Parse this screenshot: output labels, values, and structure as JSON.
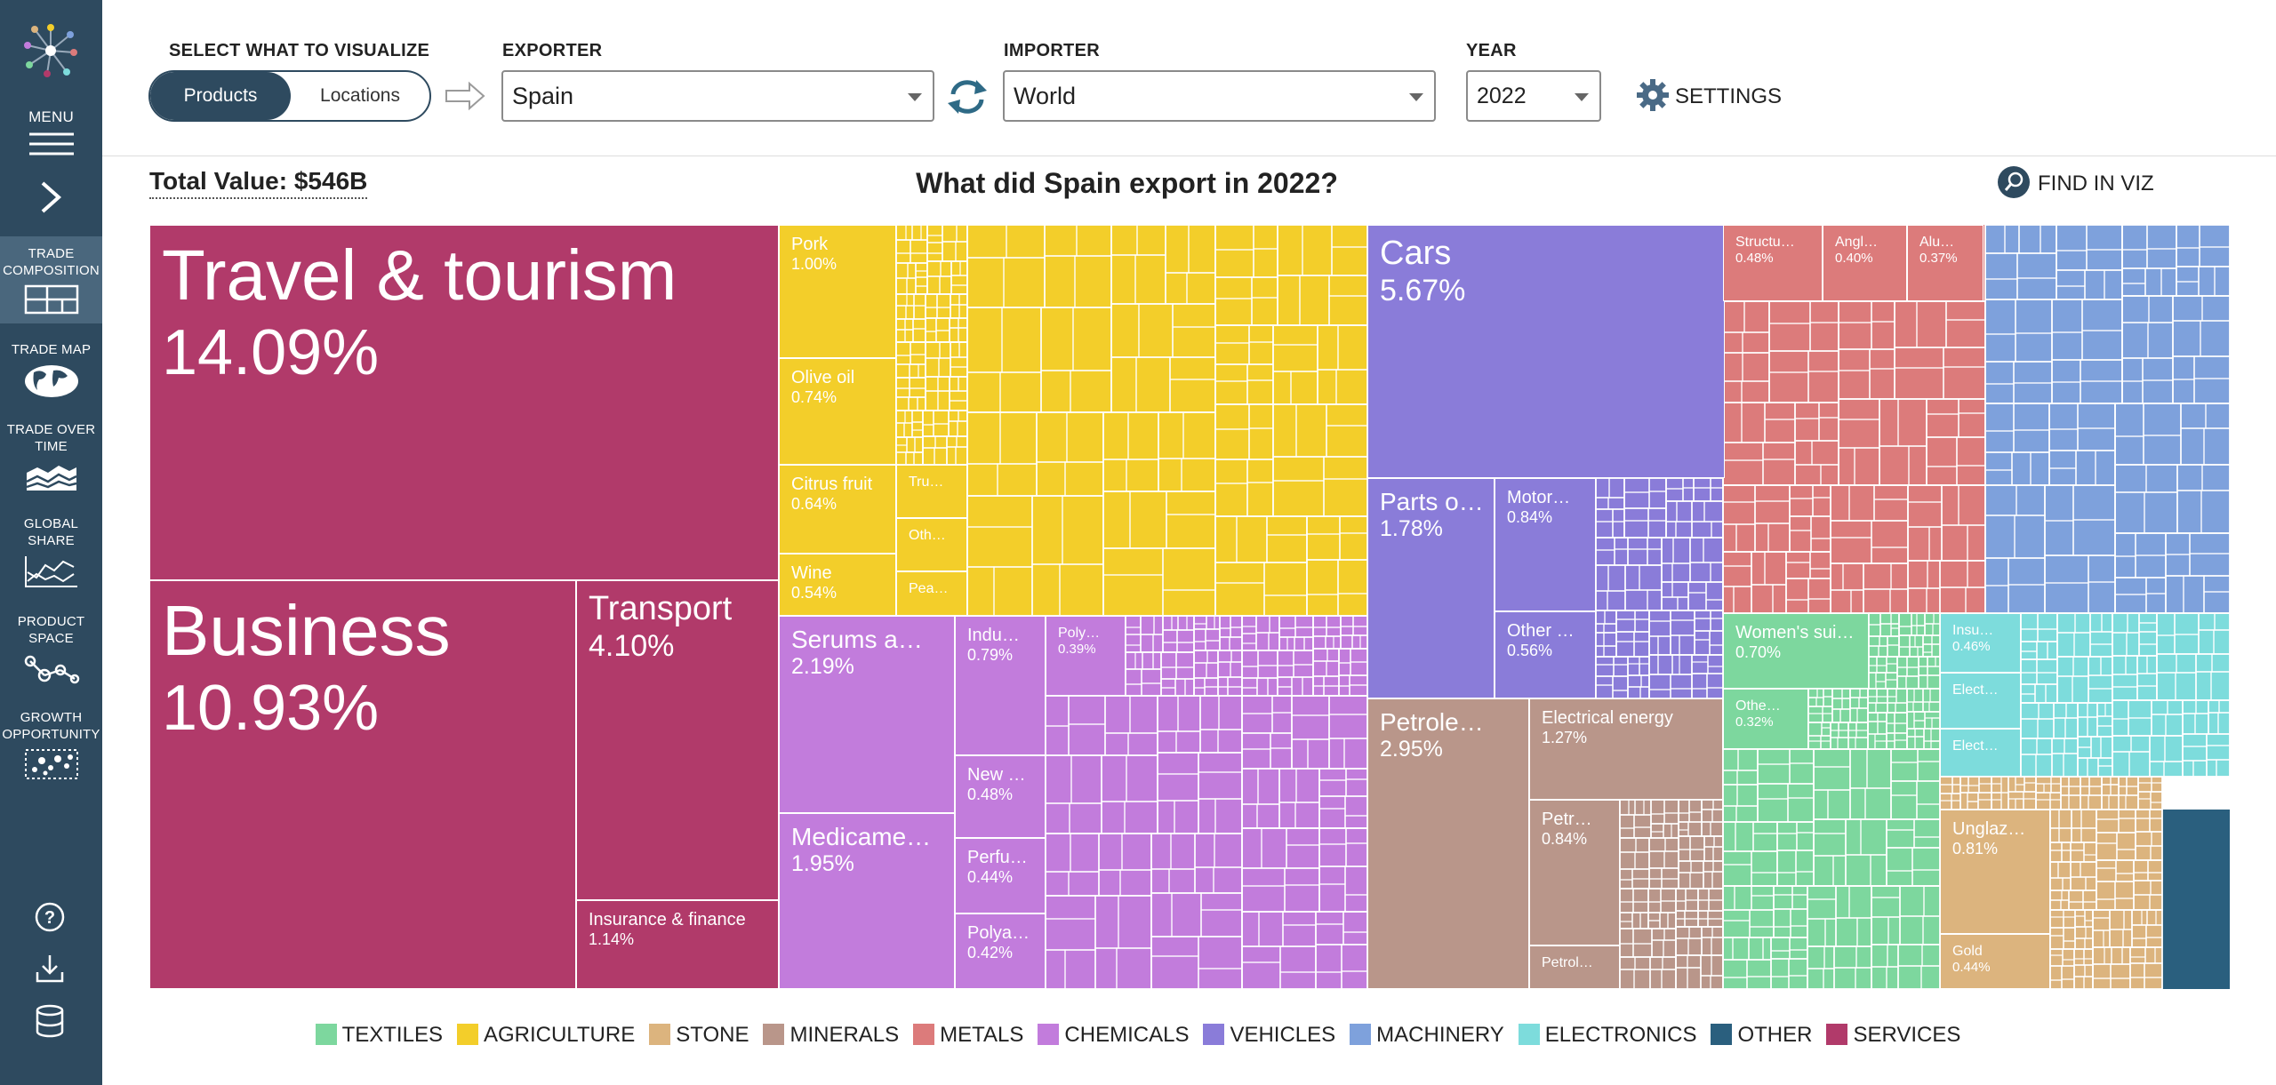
{
  "sidebar": {
    "menu_label": "MENU",
    "items": [
      {
        "label_1": "TRADE",
        "label_2": "COMPOSITION",
        "icon": "treemap-icon"
      },
      {
        "label_1": "TRADE MAP",
        "label_2": "",
        "icon": "globe-icon"
      },
      {
        "label_1": "TRADE OVER",
        "label_2": "TIME",
        "icon": "area-chart-icon"
      },
      {
        "label_1": "GLOBAL",
        "label_2": "SHARE",
        "icon": "line-chart-icon"
      },
      {
        "label_1": "PRODUCT",
        "label_2": "SPACE",
        "icon": "network-icon"
      },
      {
        "label_1": "GROWTH",
        "label_2": "OPPORTUNITY",
        "icon": "scatter-icon"
      }
    ],
    "bottom_icons": [
      "help-icon",
      "download-icon",
      "database-icon"
    ]
  },
  "controls": {
    "select_label": "SELECT WHAT TO VISUALIZE",
    "toggle_on": "Products",
    "toggle_off": "Locations",
    "exporter_label": "EXPORTER",
    "exporter_value": "Spain",
    "importer_label": "IMPORTER",
    "importer_value": "World",
    "year_label": "YEAR",
    "year_value": "2022",
    "settings_label": "SETTINGS"
  },
  "header": {
    "total_value": "Total Value: $546B",
    "title": "What did Spain export in 2022?",
    "find_label": "FIND IN VIZ"
  },
  "colors": {
    "TEXTILES": "#7dd79e",
    "AGRICULTURE": "#f3ce2a",
    "STONE": "#dcb47e",
    "MINERALS": "#b9968a",
    "METALS": "#dc7b7b",
    "CHEMICALS": "#c27cdc",
    "VEHICLES": "#8a7cd9",
    "MACHINERY": "#7ea1dc",
    "ELECTRONICS": "#7ddcdc",
    "OTHER": "#2a5f7e",
    "SERVICES": "#b13a6a"
  },
  "legend": [
    "TEXTILES",
    "AGRICULTURE",
    "STONE",
    "MINERALS",
    "METALS",
    "CHEMICALS",
    "VEHICLES",
    "MACHINERY",
    "ELECTRONICS",
    "OTHER",
    "SERVICES"
  ],
  "treemap": {
    "labeled_tiles": [
      {
        "name": "Travel & tourism",
        "share": "14.09%",
        "sector": "SERVICES"
      },
      {
        "name": "Business",
        "share": "10.93%",
        "sector": "SERVICES"
      },
      {
        "name": "Transport",
        "share": "4.10%",
        "sector": "SERVICES"
      },
      {
        "name": "Insurance & finance",
        "share": "1.14%",
        "sector": "SERVICES"
      },
      {
        "name": "Pork",
        "share": "1.00%",
        "sector": "AGRICULTURE"
      },
      {
        "name": "Olive oil",
        "share": "0.74%",
        "sector": "AGRICULTURE"
      },
      {
        "name": "Citrus fruit",
        "share": "0.64%",
        "sector": "AGRICULTURE"
      },
      {
        "name": "Wine",
        "share": "0.54%",
        "sector": "AGRICULTURE"
      },
      {
        "name": "Tru…",
        "share": "",
        "sector": "AGRICULTURE"
      },
      {
        "name": "Oth…",
        "share": "",
        "sector": "AGRICULTURE"
      },
      {
        "name": "Pea…",
        "share": "",
        "sector": "AGRICULTURE"
      },
      {
        "name": "Serums a…",
        "share": "2.19%",
        "sector": "CHEMICALS"
      },
      {
        "name": "Medicame…",
        "share": "1.95%",
        "sector": "CHEMICALS"
      },
      {
        "name": "Indu…",
        "share": "0.79%",
        "sector": "CHEMICALS"
      },
      {
        "name": "Poly…",
        "share": "0.39%",
        "sector": "CHEMICALS"
      },
      {
        "name": "New …",
        "share": "0.48%",
        "sector": "CHEMICALS"
      },
      {
        "name": "Perfu…",
        "share": "0.44%",
        "sector": "CHEMICALS"
      },
      {
        "name": "Polya…",
        "share": "0.42%",
        "sector": "CHEMICALS"
      },
      {
        "name": "Cars",
        "share": "5.67%",
        "sector": "VEHICLES"
      },
      {
        "name": "Parts o…",
        "share": "1.78%",
        "sector": "VEHICLES"
      },
      {
        "name": "Motor…",
        "share": "0.84%",
        "sector": "VEHICLES"
      },
      {
        "name": "Other …",
        "share": "0.56%",
        "sector": "VEHICLES"
      },
      {
        "name": "Petrole…",
        "share": "2.95%",
        "sector": "MINERALS"
      },
      {
        "name": "Electrical energy",
        "share": "1.27%",
        "sector": "MINERALS"
      },
      {
        "name": "Petr…",
        "share": "0.84%",
        "sector": "MINERALS"
      },
      {
        "name": "Petrol…",
        "share": "",
        "sector": "MINERALS"
      },
      {
        "name": "Structu…",
        "share": "0.48%",
        "sector": "METALS"
      },
      {
        "name": "Angl…",
        "share": "0.40%",
        "sector": "METALS"
      },
      {
        "name": "Alu…",
        "share": "0.37%",
        "sector": "METALS"
      },
      {
        "name": "Women's sui…",
        "share": "0.70%",
        "sector": "TEXTILES"
      },
      {
        "name": "Othe…",
        "share": "0.32%",
        "sector": "TEXTILES"
      },
      {
        "name": "Insu…",
        "share": "0.46%",
        "sector": "ELECTRONICS"
      },
      {
        "name": "Elect…",
        "share": "",
        "sector": "ELECTRONICS"
      },
      {
        "name": "Elect…",
        "share": "",
        "sector": "ELECTRONICS"
      },
      {
        "name": "Unglaz…",
        "share": "0.81%",
        "sector": "STONE"
      },
      {
        "name": "Gold",
        "share": "0.44%",
        "sector": "STONE"
      }
    ]
  }
}
